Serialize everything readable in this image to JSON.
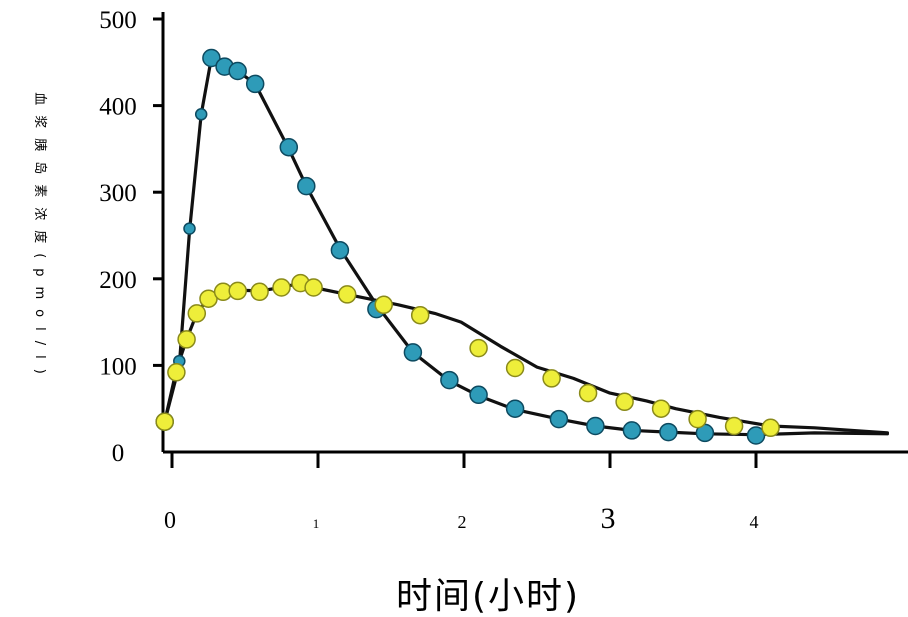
{
  "chart_data": {
    "type": "line",
    "title": "",
    "xlabel": "时间(小时)",
    "ylabel": "血浆胰岛素浓度(pmol/l)",
    "xlim": [
      0,
      5
    ],
    "ylim": [
      0,
      500
    ],
    "xticks": [
      {
        "value": 0,
        "label": "0"
      },
      {
        "value": 1,
        "label": "1"
      },
      {
        "value": 2,
        "label": "2"
      },
      {
        "value": 3,
        "label": "3"
      },
      {
        "value": 4,
        "label": "4"
      }
    ],
    "yticks": [
      {
        "value": 0,
        "label": "0"
      },
      {
        "value": 100,
        "label": "100"
      },
      {
        "value": 200,
        "label": "200"
      },
      {
        "value": 300,
        "label": "300"
      },
      {
        "value": 400,
        "label": "400"
      },
      {
        "value": 500,
        "label": "500"
      }
    ],
    "grid": false,
    "series": [
      {
        "color": "#2e9bb8",
        "line": [
          [
            -0.05,
            35
          ],
          [
            0.05,
            100
          ],
          [
            0.12,
            255
          ],
          [
            0.2,
            390
          ],
          [
            0.27,
            455
          ],
          [
            0.36,
            447
          ],
          [
            0.45,
            440
          ],
          [
            0.57,
            425
          ],
          [
            0.8,
            350
          ],
          [
            0.92,
            307
          ],
          [
            1.15,
            235
          ],
          [
            1.4,
            170
          ],
          [
            1.65,
            115
          ],
          [
            1.9,
            82
          ],
          [
            2.1,
            65
          ],
          [
            2.35,
            49
          ],
          [
            2.65,
            38
          ],
          [
            2.9,
            30
          ],
          [
            3.15,
            25
          ],
          [
            3.4,
            23
          ],
          [
            3.65,
            21
          ],
          [
            4.0,
            20
          ],
          [
            4.4,
            22
          ],
          [
            4.9,
            21
          ]
        ],
        "markers": [
          {
            "x": -0.05,
            "y": 35,
            "size": "l"
          },
          {
            "x": 0.05,
            "y": 105,
            "size": "s"
          },
          {
            "x": 0.12,
            "y": 258,
            "size": "s"
          },
          {
            "x": 0.2,
            "y": 390,
            "size": "s"
          },
          {
            "x": 0.27,
            "y": 455,
            "size": "l"
          },
          {
            "x": 0.36,
            "y": 445,
            "size": "l"
          },
          {
            "x": 0.45,
            "y": 440,
            "size": "l"
          },
          {
            "x": 0.57,
            "y": 425,
            "size": "l"
          },
          {
            "x": 0.8,
            "y": 352,
            "size": "l"
          },
          {
            "x": 0.92,
            "y": 307,
            "size": "l"
          },
          {
            "x": 1.15,
            "y": 233,
            "size": "l"
          },
          {
            "x": 1.4,
            "y": 165,
            "size": "l"
          },
          {
            "x": 1.65,
            "y": 115,
            "size": "l"
          },
          {
            "x": 1.9,
            "y": 83,
            "size": "l"
          },
          {
            "x": 2.1,
            "y": 66,
            "size": "l"
          },
          {
            "x": 2.35,
            "y": 50,
            "size": "l"
          },
          {
            "x": 2.65,
            "y": 38,
            "size": "l"
          },
          {
            "x": 2.9,
            "y": 30,
            "size": "l"
          },
          {
            "x": 3.15,
            "y": 25,
            "size": "l"
          },
          {
            "x": 3.4,
            "y": 23,
            "size": "l"
          },
          {
            "x": 3.65,
            "y": 22,
            "size": "l"
          },
          {
            "x": 4.0,
            "y": 19,
            "size": "l"
          }
        ]
      },
      {
        "color": "#eeee3a",
        "line": [
          [
            -0.05,
            35
          ],
          [
            0.03,
            95
          ],
          [
            0.1,
            130
          ],
          [
            0.17,
            160
          ],
          [
            0.25,
            178
          ],
          [
            0.35,
            186
          ],
          [
            0.45,
            187
          ],
          [
            0.6,
            186
          ],
          [
            0.75,
            190
          ],
          [
            0.88,
            195
          ],
          [
            0.97,
            190
          ],
          [
            1.2,
            182
          ],
          [
            1.55,
            170
          ],
          [
            1.8,
            160
          ],
          [
            1.98,
            150
          ],
          [
            2.25,
            122
          ],
          [
            2.5,
            98
          ],
          [
            2.75,
            85
          ],
          [
            3.0,
            68
          ],
          [
            3.25,
            59
          ],
          [
            3.45,
            50
          ],
          [
            3.75,
            40
          ],
          [
            4.1,
            30
          ],
          [
            4.4,
            28
          ],
          [
            4.9,
            22
          ]
        ],
        "markers": [
          {
            "x": -0.05,
            "y": 35,
            "size": "l"
          },
          {
            "x": 0.03,
            "y": 92,
            "size": "l"
          },
          {
            "x": 0.1,
            "y": 130,
            "size": "l"
          },
          {
            "x": 0.17,
            "y": 160,
            "size": "l"
          },
          {
            "x": 0.25,
            "y": 177,
            "size": "l"
          },
          {
            "x": 0.35,
            "y": 185,
            "size": "l"
          },
          {
            "x": 0.45,
            "y": 186,
            "size": "l"
          },
          {
            "x": 0.6,
            "y": 185,
            "size": "l"
          },
          {
            "x": 0.75,
            "y": 190,
            "size": "l"
          },
          {
            "x": 0.88,
            "y": 195,
            "size": "l"
          },
          {
            "x": 0.97,
            "y": 190,
            "size": "l"
          },
          {
            "x": 1.2,
            "y": 182,
            "size": "l"
          },
          {
            "x": 1.45,
            "y": 170,
            "size": "l"
          },
          {
            "x": 1.7,
            "y": 158,
            "size": "l"
          },
          {
            "x": 2.1,
            "y": 120,
            "size": "l"
          },
          {
            "x": 2.35,
            "y": 97,
            "size": "l"
          },
          {
            "x": 2.6,
            "y": 85,
            "size": "l"
          },
          {
            "x": 2.85,
            "y": 68,
            "size": "l"
          },
          {
            "x": 3.1,
            "y": 58,
            "size": "l"
          },
          {
            "x": 3.35,
            "y": 50,
            "size": "l"
          },
          {
            "x": 3.6,
            "y": 38,
            "size": "l"
          },
          {
            "x": 3.85,
            "y": 30,
            "size": "l"
          },
          {
            "x": 4.1,
            "y": 28,
            "size": "l"
          }
        ]
      }
    ]
  }
}
